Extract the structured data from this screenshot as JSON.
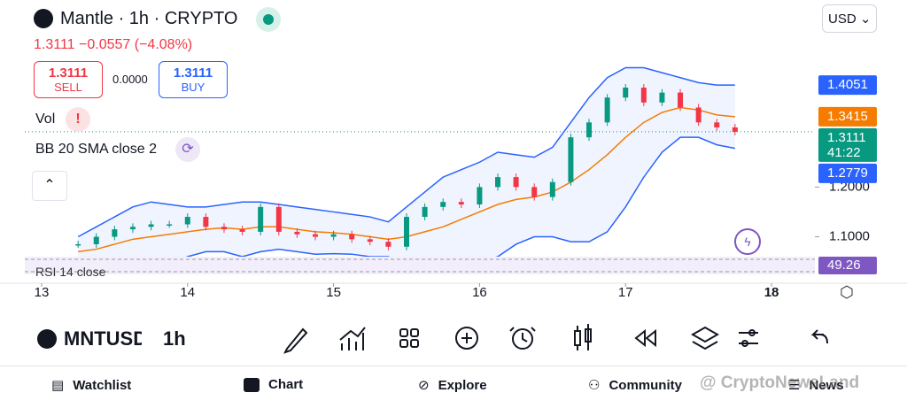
{
  "header": {
    "symbol_title": "Mantle · 1h · CRYPTO",
    "currency": "USD"
  },
  "quote": {
    "price": "1.3111",
    "change": "−0.0557",
    "change_pct": "(−4.08%)"
  },
  "trade": {
    "sell_price": "1.3111",
    "sell": "SELL",
    "spread": "0.0000",
    "buy_price": "1.3111",
    "buy": "BUY"
  },
  "indicators": {
    "vol": "Vol",
    "bb": "BB 20 SMA close 2",
    "rsi": "RSI 14 close"
  },
  "chart_data": {
    "type": "candlestick",
    "x": [
      13.25,
      13.375,
      13.5,
      13.625,
      13.75,
      13.875,
      14.0,
      14.125,
      14.25,
      14.375,
      14.5,
      14.625,
      14.75,
      14.875,
      15.0,
      15.125,
      15.25,
      15.375,
      15.5,
      15.625,
      15.75,
      15.875,
      16.0,
      16.125,
      16.25,
      16.375,
      16.5,
      16.625,
      16.75,
      16.875,
      17.0,
      17.125,
      17.25,
      17.375,
      17.5,
      17.625,
      17.75
    ],
    "close": [
      1.085,
      1.1,
      1.115,
      1.12,
      1.125,
      1.125,
      1.14,
      1.12,
      1.115,
      1.11,
      1.16,
      1.11,
      1.105,
      1.1,
      1.105,
      1.095,
      1.09,
      1.08,
      1.14,
      1.16,
      1.17,
      1.165,
      1.2,
      1.22,
      1.2,
      1.18,
      1.21,
      1.3,
      1.33,
      1.38,
      1.4,
      1.37,
      1.39,
      1.36,
      1.33,
      1.32,
      1.3111
    ],
    "bb_upper": [
      1.1,
      1.12,
      1.14,
      1.16,
      1.17,
      1.165,
      1.16,
      1.16,
      1.165,
      1.17,
      1.17,
      1.165,
      1.16,
      1.155,
      1.15,
      1.145,
      1.14,
      1.13,
      1.16,
      1.19,
      1.22,
      1.235,
      1.25,
      1.27,
      1.265,
      1.26,
      1.28,
      1.33,
      1.38,
      1.42,
      1.44,
      1.44,
      1.43,
      1.42,
      1.41,
      1.405,
      1.4051
    ],
    "bb_middle": [
      1.07,
      1.075,
      1.085,
      1.095,
      1.1,
      1.105,
      1.11,
      1.115,
      1.118,
      1.115,
      1.12,
      1.12,
      1.115,
      1.11,
      1.108,
      1.105,
      1.1,
      1.095,
      1.1,
      1.11,
      1.12,
      1.135,
      1.15,
      1.165,
      1.175,
      1.18,
      1.19,
      1.21,
      1.235,
      1.265,
      1.3,
      1.33,
      1.35,
      1.36,
      1.355,
      1.345,
      1.3415
    ],
    "bb_lower": [
      1.04,
      1.03,
      1.03,
      1.03,
      1.03,
      1.045,
      1.06,
      1.07,
      1.07,
      1.06,
      1.07,
      1.075,
      1.07,
      1.065,
      1.066,
      1.065,
      1.06,
      1.06,
      1.04,
      1.03,
      1.02,
      1.035,
      1.05,
      1.06,
      1.085,
      1.1,
      1.1,
      1.09,
      1.09,
      1.11,
      1.16,
      1.22,
      1.27,
      1.3,
      1.3,
      1.285,
      1.2779
    ],
    "up_color": "#089981",
    "down_color": "#f23645",
    "band_color": "#2962ff",
    "basis_color": "#f57c00",
    "xlim": [
      12.885,
      18.297
    ],
    "xticks": [
      13,
      14,
      15,
      16,
      17,
      18
    ],
    "ylim": [
      1.06,
      1.505
    ],
    "yticks": [
      {
        "value": 1.2,
        "label": "1.2000"
      },
      {
        "value": 1.1,
        "label": "1.1000"
      }
    ],
    "price_tags": [
      {
        "value": 1.4051,
        "color": "#2962ff"
      },
      {
        "value": 1.3415,
        "color": "#f57c00"
      },
      {
        "value": 1.3111,
        "color": "#089981"
      },
      {
        "value": 1.2779,
        "color": "#2962ff"
      }
    ],
    "countdown": "41:22",
    "rsi_value": 49.26,
    "rsi_color": "#7e57c2"
  },
  "toolbar": {
    "symbol": "MNTUSDT",
    "interval": "1h"
  },
  "nav": [
    "Watchlist",
    "Chart",
    "Explore",
    "Community",
    "News"
  ],
  "watermark": "@ CryptoNewsLand"
}
